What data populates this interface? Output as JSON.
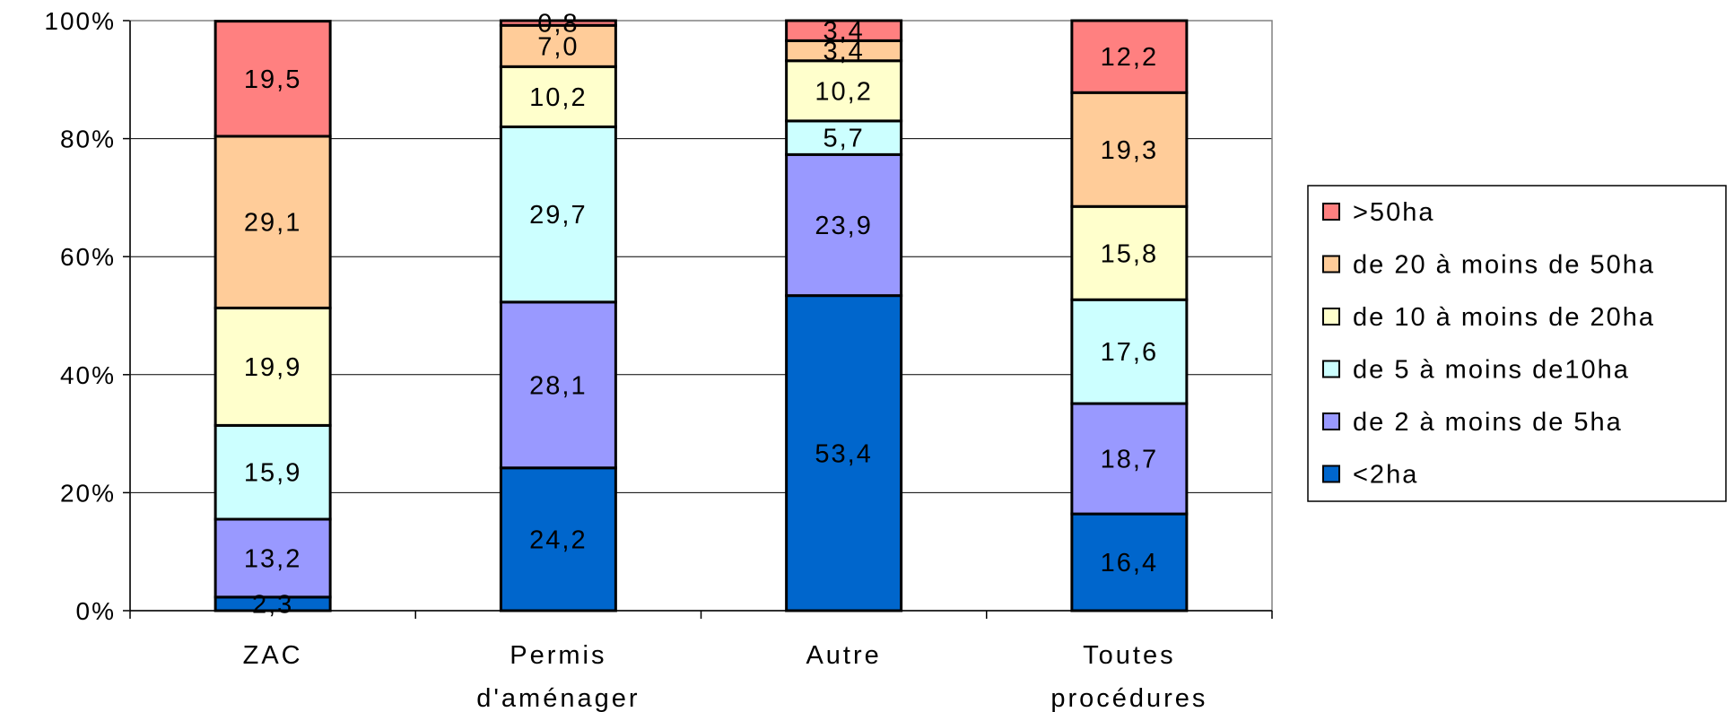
{
  "chart_data": {
    "type": "bar",
    "stacked": true,
    "percent": true,
    "categories": [
      [
        "ZAC"
      ],
      [
        "Permis",
        "d'aménager"
      ],
      [
        "Autre"
      ],
      [
        "Toutes",
        "procédures"
      ]
    ],
    "series": [
      {
        "name": "<2ha",
        "color": "#0066CC",
        "values": [
          2.3,
          24.2,
          53.4,
          16.4
        ],
        "labels": [
          "2,3",
          "24,2",
          "53,4",
          "16,4"
        ]
      },
      {
        "name": "de  2 à moins de 5ha",
        "color": "#9999FF",
        "values": [
          13.2,
          28.1,
          23.9,
          18.7
        ],
        "labels": [
          "13,2",
          "28,1",
          "23,9",
          "18,7"
        ]
      },
      {
        "name": "de 5 à moins de10ha",
        "color": "#CCFFFF",
        "values": [
          15.9,
          29.7,
          5.7,
          17.6
        ],
        "labels": [
          "15,9",
          "29,7",
          "5,7",
          "17,6"
        ]
      },
      {
        "name": "de 10 à moins de 20ha",
        "color": "#FFFFCC",
        "values": [
          19.9,
          10.2,
          10.2,
          15.8
        ],
        "labels": [
          "19,9",
          "10,2",
          "10,2",
          "15,8"
        ]
      },
      {
        "name": "de 20 à moins de 50ha",
        "color": "#FFCC99",
        "values": [
          29.1,
          7.0,
          3.4,
          19.3
        ],
        "labels": [
          "29,1",
          "7,0",
          "3,4",
          "19,3"
        ]
      },
      {
        "name": ">50ha",
        "color": "#FF8080",
        "values": [
          19.5,
          0.8,
          3.4,
          12.2
        ],
        "labels": [
          "19,5",
          "0,8",
          "3,4",
          "12,2"
        ]
      }
    ],
    "yticks": [
      "0%",
      "20%",
      "40%",
      "60%",
      "80%",
      "100%"
    ],
    "ylim": [
      0,
      100
    ],
    "grid": true,
    "legend_position": "right"
  }
}
